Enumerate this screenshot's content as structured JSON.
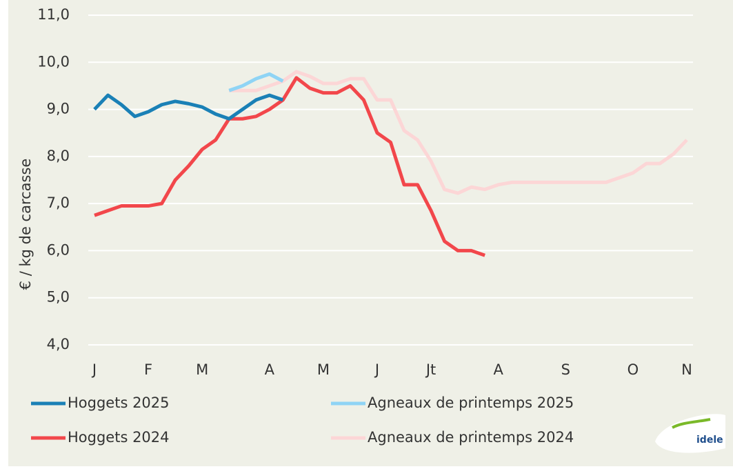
{
  "chart_data": {
    "type": "line",
    "y_label": "€ / kg de carcasse",
    "categories": [
      "J",
      null,
      null,
      null,
      "F",
      null,
      null,
      null,
      "M",
      null,
      null,
      null,
      null,
      "A",
      null,
      null,
      null,
      "M",
      null,
      null,
      null,
      "J",
      null,
      null,
      null,
      "Jt",
      null,
      null,
      null,
      null,
      "A",
      null,
      null,
      null,
      null,
      "S",
      null,
      null,
      null,
      null,
      "O",
      null,
      null,
      null,
      "N"
    ],
    "ylim": [
      4,
      11
    ],
    "yticks": [
      {
        "value": 4,
        "label": "4,0"
      },
      {
        "value": 5,
        "label": "5,0"
      },
      {
        "value": 6,
        "label": "6,0"
      },
      {
        "value": 7,
        "label": "7,0"
      },
      {
        "value": 8,
        "label": "8,0"
      },
      {
        "value": 9,
        "label": "9,0"
      },
      {
        "value": 10,
        "label": "10,0"
      },
      {
        "value": 11,
        "label": "11,0"
      }
    ],
    "grid": true,
    "series": [
      {
        "name": "Hoggets 2025",
        "color": "#1a80b6",
        "values": [
          9.0,
          9.3,
          9.1,
          8.85,
          8.95,
          9.1,
          9.17,
          9.12,
          9.05,
          8.9,
          8.8,
          9.0,
          9.2,
          9.3,
          9.2,
          null,
          null,
          null,
          null,
          null,
          null,
          null,
          null,
          null,
          null,
          null,
          null,
          null,
          null,
          null,
          null,
          null,
          null,
          null,
          null,
          null,
          null,
          null,
          null,
          null,
          null,
          null,
          null,
          null,
          null
        ]
      },
      {
        "name": "Agneaux de printemps 2025",
        "color": "#8fd4f5",
        "values": [
          null,
          null,
          null,
          null,
          null,
          null,
          null,
          null,
          null,
          null,
          9.4,
          9.5,
          9.65,
          9.75,
          9.6,
          null,
          null,
          null,
          null,
          null,
          null,
          null,
          null,
          null,
          null,
          null,
          null,
          null,
          null,
          null,
          null,
          null,
          null,
          null,
          null,
          null,
          null,
          null,
          null,
          null,
          null,
          null,
          null,
          null,
          null
        ]
      },
      {
        "name": "Hoggets 2024",
        "color": "#f2474b",
        "values": [
          6.75,
          6.85,
          6.95,
          6.95,
          6.95,
          7.0,
          7.5,
          7.8,
          8.15,
          8.35,
          8.8,
          8.8,
          8.85,
          9.0,
          9.2,
          9.67,
          9.45,
          9.35,
          9.35,
          9.5,
          9.2,
          8.5,
          8.3,
          7.4,
          7.4,
          6.85,
          6.2,
          6.0,
          6.0,
          5.9,
          null,
          null,
          null,
          null,
          null,
          null,
          null,
          null,
          null,
          null,
          null,
          null,
          null,
          null,
          null
        ]
      },
      {
        "name": "Agneaux de printemps 2024",
        "color": "#fcd6d6",
        "values": [
          null,
          null,
          null,
          null,
          null,
          null,
          null,
          null,
          null,
          null,
          9.4,
          9.4,
          9.4,
          9.5,
          9.6,
          9.8,
          9.7,
          9.55,
          9.55,
          9.65,
          9.65,
          9.2,
          9.2,
          8.55,
          8.35,
          7.9,
          7.3,
          7.22,
          7.35,
          7.3,
          7.4,
          7.45,
          7.45,
          7.45,
          7.45,
          7.45,
          7.45,
          7.45,
          7.45,
          7.55,
          7.65,
          7.85,
          7.85,
          8.05,
          8.35
        ]
      }
    ],
    "logo": "idele"
  }
}
